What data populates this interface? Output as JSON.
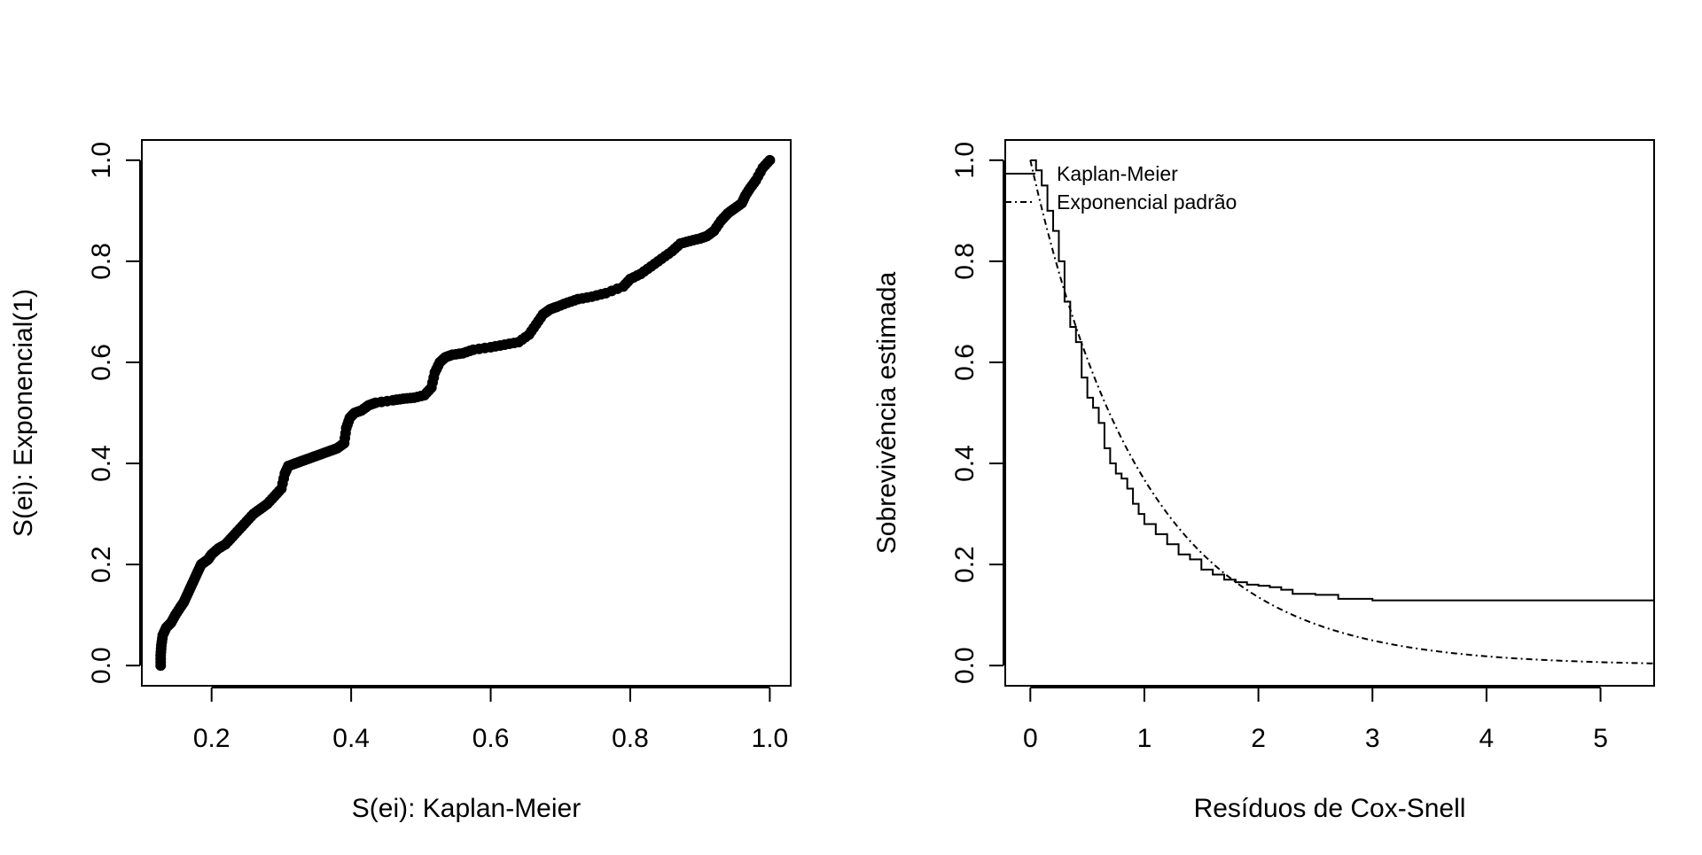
{
  "chart_data": [
    {
      "type": "scatter",
      "xlabel": "S(ei): Kaplan-Meier",
      "ylabel": "S(ei): Exponencial(1)",
      "xlim": [
        0.1,
        1.03
      ],
      "ylim": [
        -0.04,
        1.04
      ],
      "xticks": [
        0.2,
        0.4,
        0.6,
        0.8,
        1.0
      ],
      "xtick_labels": [
        "0.2",
        "0.4",
        "0.6",
        "0.8",
        "1.0"
      ],
      "yticks": [
        0.0,
        0.2,
        0.4,
        0.6,
        0.8,
        1.0
      ],
      "ytick_labels": [
        "0.0",
        "0.2",
        "0.4",
        "0.6",
        "0.8",
        "1.0"
      ],
      "grid": false,
      "points": [
        [
          0.127,
          0.0
        ],
        [
          0.127,
          0.02
        ],
        [
          0.128,
          0.04
        ],
        [
          0.13,
          0.06
        ],
        [
          0.135,
          0.075
        ],
        [
          0.142,
          0.085
        ],
        [
          0.148,
          0.1
        ],
        [
          0.155,
          0.115
        ],
        [
          0.16,
          0.125
        ],
        [
          0.165,
          0.14
        ],
        [
          0.17,
          0.155
        ],
        [
          0.175,
          0.17
        ],
        [
          0.18,
          0.185
        ],
        [
          0.185,
          0.2
        ],
        [
          0.19,
          0.205
        ],
        [
          0.195,
          0.21
        ],
        [
          0.2,
          0.22
        ],
        [
          0.21,
          0.232
        ],
        [
          0.22,
          0.24
        ],
        [
          0.23,
          0.255
        ],
        [
          0.24,
          0.27
        ],
        [
          0.25,
          0.285
        ],
        [
          0.26,
          0.3
        ],
        [
          0.27,
          0.31
        ],
        [
          0.28,
          0.32
        ],
        [
          0.29,
          0.335
        ],
        [
          0.3,
          0.35
        ],
        [
          0.305,
          0.38
        ],
        [
          0.31,
          0.395
        ],
        [
          0.32,
          0.4
        ],
        [
          0.33,
          0.405
        ],
        [
          0.34,
          0.41
        ],
        [
          0.35,
          0.415
        ],
        [
          0.36,
          0.42
        ],
        [
          0.37,
          0.425
        ],
        [
          0.38,
          0.43
        ],
        [
          0.39,
          0.44
        ],
        [
          0.393,
          0.47
        ],
        [
          0.398,
          0.49
        ],
        [
          0.405,
          0.5
        ],
        [
          0.415,
          0.505
        ],
        [
          0.425,
          0.515
        ],
        [
          0.435,
          0.52
        ],
        [
          0.46,
          0.525
        ],
        [
          0.475,
          0.528
        ],
        [
          0.49,
          0.53
        ],
        [
          0.505,
          0.535
        ],
        [
          0.515,
          0.55
        ],
        [
          0.52,
          0.58
        ],
        [
          0.527,
          0.6
        ],
        [
          0.535,
          0.61
        ],
        [
          0.545,
          0.615
        ],
        [
          0.56,
          0.618
        ],
        [
          0.575,
          0.625
        ],
        [
          0.6,
          0.63
        ],
        [
          0.62,
          0.635
        ],
        [
          0.64,
          0.64
        ],
        [
          0.655,
          0.655
        ],
        [
          0.665,
          0.675
        ],
        [
          0.675,
          0.695
        ],
        [
          0.685,
          0.705
        ],
        [
          0.695,
          0.71
        ],
        [
          0.71,
          0.718
        ],
        [
          0.725,
          0.725
        ],
        [
          0.745,
          0.73
        ],
        [
          0.765,
          0.737
        ],
        [
          0.79,
          0.75
        ],
        [
          0.8,
          0.765
        ],
        [
          0.815,
          0.775
        ],
        [
          0.83,
          0.79
        ],
        [
          0.845,
          0.805
        ],
        [
          0.86,
          0.82
        ],
        [
          0.872,
          0.835
        ],
        [
          0.885,
          0.84
        ],
        [
          0.9,
          0.845
        ],
        [
          0.91,
          0.85
        ],
        [
          0.92,
          0.86
        ],
        [
          0.93,
          0.88
        ],
        [
          0.94,
          0.895
        ],
        [
          0.95,
          0.905
        ],
        [
          0.96,
          0.915
        ],
        [
          0.965,
          0.93
        ],
        [
          0.972,
          0.945
        ],
        [
          0.98,
          0.96
        ],
        [
          0.99,
          0.985
        ],
        [
          1.0,
          1.0
        ]
      ]
    },
    {
      "type": "line",
      "xlabel": "Resíduos de Cox-Snell",
      "ylabel": "Sobrevivência estimada",
      "xlim": [
        -0.22,
        5.47
      ],
      "ylim": [
        -0.04,
        1.04
      ],
      "xticks": [
        0,
        1,
        2,
        3,
        4,
        5
      ],
      "xtick_labels": [
        "0",
        "1",
        "2",
        "3",
        "4",
        "5"
      ],
      "yticks": [
        0.0,
        0.2,
        0.4,
        0.6,
        0.8,
        1.0
      ],
      "ytick_labels": [
        "0.0",
        "0.2",
        "0.4",
        "0.6",
        "0.8",
        "1.0"
      ],
      "grid": false,
      "legend": {
        "placement": "top-left",
        "entries": [
          {
            "label": "Kaplan-Meier",
            "line_style": "solid"
          },
          {
            "label": "Exponencial padrão",
            "line_style": "dashed"
          }
        ]
      },
      "series": [
        {
          "name": "Kaplan-Meier",
          "line_style": "solid",
          "x": [
            0.0,
            0.05,
            0.1,
            0.15,
            0.2,
            0.25,
            0.3,
            0.35,
            0.4,
            0.45,
            0.5,
            0.55,
            0.6,
            0.65,
            0.7,
            0.75,
            0.8,
            0.85,
            0.9,
            0.95,
            1.0,
            1.1,
            1.2,
            1.3,
            1.4,
            1.5,
            1.6,
            1.7,
            1.8,
            1.9,
            2.0,
            2.1,
            2.2,
            2.3,
            2.5,
            2.7,
            3.0,
            5.47
          ],
          "y": [
            1.0,
            0.98,
            0.95,
            0.9,
            0.86,
            0.8,
            0.72,
            0.67,
            0.64,
            0.57,
            0.53,
            0.51,
            0.48,
            0.43,
            0.4,
            0.38,
            0.37,
            0.35,
            0.32,
            0.3,
            0.28,
            0.26,
            0.24,
            0.22,
            0.21,
            0.19,
            0.18,
            0.17,
            0.165,
            0.16,
            0.158,
            0.155,
            0.15,
            0.142,
            0.14,
            0.132,
            0.129,
            0.128
          ]
        },
        {
          "name": "Exponencial padrão",
          "line_style": "dashed",
          "function": "exp(-x)",
          "x_range": [
            0,
            5.47
          ]
        }
      ]
    }
  ]
}
